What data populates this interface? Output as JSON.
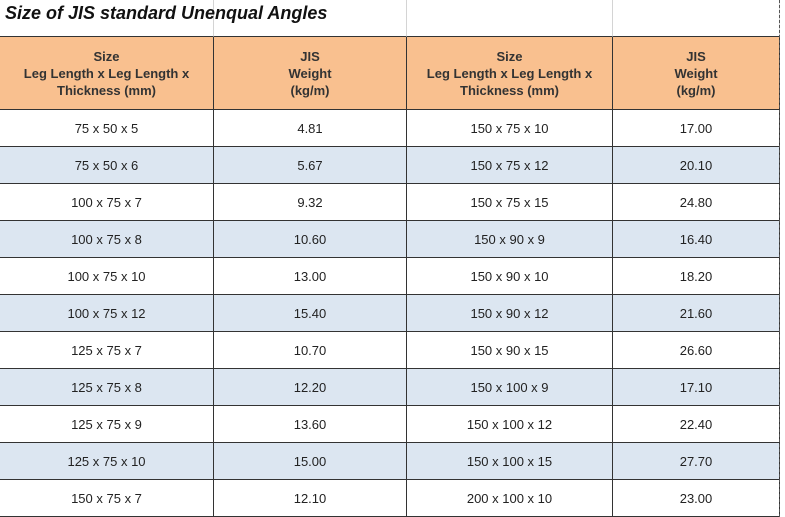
{
  "title": "Size of JIS standard Unenqual Angles",
  "table": {
    "headers": [
      [
        "Size",
        "Leg Length x Leg Length x",
        "Thickness (mm)"
      ],
      [
        "JIS",
        "Weight",
        "(kg/m)"
      ],
      [
        "Size",
        "Leg Length x Leg Length x",
        "Thickness (mm)"
      ],
      [
        "JIS",
        "Weight",
        "(kg/m)"
      ]
    ],
    "rows": [
      [
        "75 x 50 x 5",
        "4.81",
        "150 x 75 x 10",
        "17.00"
      ],
      [
        "75 x 50 x 6",
        "5.67",
        "150 x 75 x 12",
        "20.10"
      ],
      [
        "100 x 75 x 7",
        "9.32",
        "150 x 75 x 15",
        "24.80"
      ],
      [
        "100 x 75 x 8",
        "10.60",
        "150 x 90 x 9",
        "16.40"
      ],
      [
        "100 x 75 x 10",
        "13.00",
        "150 x 90 x 10",
        "18.20"
      ],
      [
        "100 x 75 x 12",
        "15.40",
        "150 x 90 x 12",
        "21.60"
      ],
      [
        "125 x 75 x 7",
        "10.70",
        "150 x 90 x 15",
        "26.60"
      ],
      [
        "125 x 75 x 8",
        "12.20",
        "150 x 100 x 9",
        "17.10"
      ],
      [
        "125 x 75 x 9",
        "13.60",
        "150 x 100 x 12",
        "22.40"
      ],
      [
        "125 x 75 x 10",
        "15.00",
        "150 x 100 x 15",
        "27.70"
      ],
      [
        "150 x 75 x 7",
        "12.10",
        "200 x 100 x 10",
        "23.00"
      ]
    ]
  }
}
